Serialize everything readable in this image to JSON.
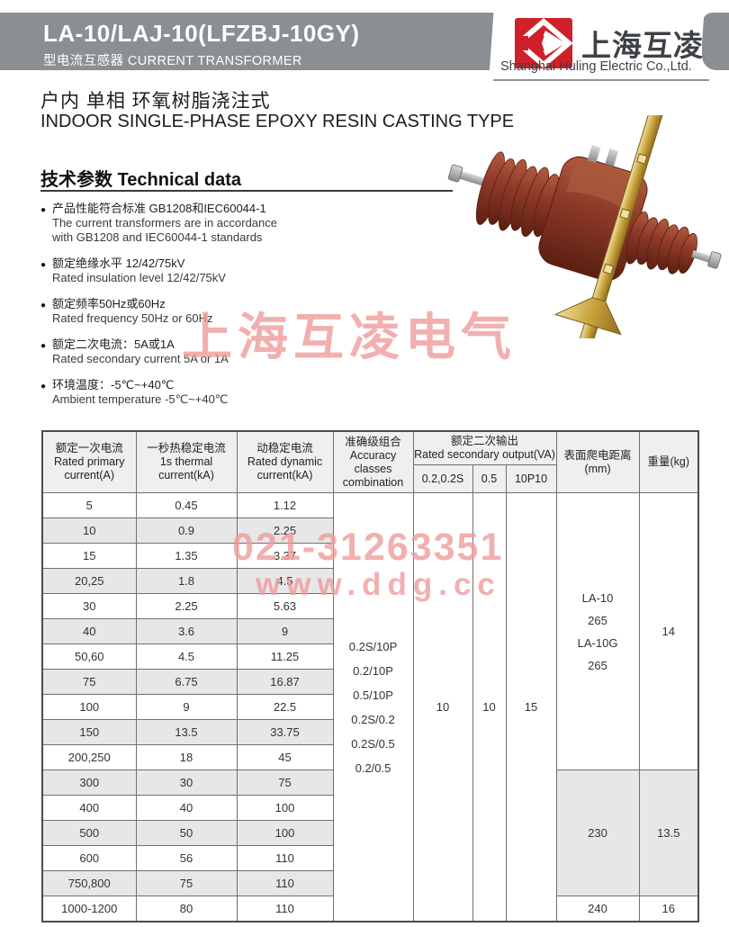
{
  "header": {
    "title": "LA-10/LAJ-10(LFZBJ-10GY)",
    "subtitle": "型电流互感器 CURRENT TRANSFORMER",
    "logo": {
      "brand_cn": "上海互凌",
      "company_en": "Shanghai Huling Electric Co.,Ltd.",
      "logo_red": "#d0202a",
      "bar_gray": "#8b8f93"
    }
  },
  "intro": {
    "line_cn": "户内  单相  环氧树脂浇注式",
    "line_en": "INDOOR SINGLE-PHASE EPOXY RESIN CASTING TYPE"
  },
  "tech": {
    "heading": "技术参数  Technical data",
    "bullets": [
      {
        "cn": "产品性能符合标准 GB1208和IEC60044-1",
        "en": [
          "The current transformers are in accordance",
          "with GB1208 and IEC60044-1 standards"
        ]
      },
      {
        "cn": "额定绝缘水平 12/42/75kV",
        "en": [
          "Rated insulation level 12/42/75kV"
        ]
      },
      {
        "cn": "额定频率50Hz或60Hz",
        "en": [
          "Rated frequency 50Hz or 60Hz"
        ]
      },
      {
        "cn": "额定二次电流：5A或1A",
        "en": [
          "Rated secondary current 5A or 1A"
        ]
      },
      {
        "cn": "环境温度：-5℃~+40℃",
        "en": [
          "Ambient temperature -5℃~+40℃"
        ]
      }
    ]
  },
  "watermarks": {
    "brand": "上海互凌电气",
    "phone": "021-31263351",
    "site": "www.ddg.cc",
    "color": "#f09c9c"
  },
  "product_photo": {
    "description": "red-brown epoxy cast current transformer with ribbed insulators and brass mounting plate",
    "body_color": "#8e3a28",
    "plate_color": "#c8a23c"
  },
  "table": {
    "columns": [
      {
        "key": "primary",
        "lines": [
          "额定一次电流",
          "Rated primary",
          "current(A)"
        ]
      },
      {
        "key": "thermal",
        "lines": [
          "一秒热稳定电流",
          "1s thermal",
          "current(kA)"
        ]
      },
      {
        "key": "dynamic",
        "lines": [
          "动稳定电流",
          "Rated dynamic",
          "current(kA)"
        ]
      },
      {
        "key": "accuracy",
        "lines": [
          "准确级组合",
          "Accuracy",
          "classes",
          "combination"
        ]
      },
      {
        "key": "output",
        "group": [
          "额定二次输出",
          "Rated secondary output(VA)"
        ],
        "subs": [
          "0.2,0.2S",
          "0.5",
          "10P10"
        ]
      },
      {
        "key": "creepage",
        "lines": [
          "表面爬电距离",
          "(mm)"
        ]
      },
      {
        "key": "weight",
        "lines": [
          "重量(kg)"
        ]
      }
    ],
    "rows": [
      {
        "primary": "5",
        "thermal": "0.45",
        "dynamic": "1.12"
      },
      {
        "primary": "10",
        "thermal": "0.9",
        "dynamic": "2.25"
      },
      {
        "primary": "15",
        "thermal": "1.35",
        "dynamic": "3.37"
      },
      {
        "primary": "20,25",
        "thermal": "1.8",
        "dynamic": "4.5"
      },
      {
        "primary": "30",
        "thermal": "2.25",
        "dynamic": "5.63"
      },
      {
        "primary": "40",
        "thermal": "3.6",
        "dynamic": "9"
      },
      {
        "primary": "50,60",
        "thermal": "4.5",
        "dynamic": "11.25"
      },
      {
        "primary": "75",
        "thermal": "6.75",
        "dynamic": "16.87"
      },
      {
        "primary": "100",
        "thermal": "9",
        "dynamic": "22.5"
      },
      {
        "primary": "150",
        "thermal": "13.5",
        "dynamic": "33.75"
      },
      {
        "primary": "200,250",
        "thermal": "18",
        "dynamic": "45"
      },
      {
        "primary": "300",
        "thermal": "30",
        "dynamic": "75"
      },
      {
        "primary": "400",
        "thermal": "40",
        "dynamic": "100"
      },
      {
        "primary": "500",
        "thermal": "50",
        "dynamic": "100"
      },
      {
        "primary": "600",
        "thermal": "56",
        "dynamic": "110"
      },
      {
        "primary": "750,800",
        "thermal": "75",
        "dynamic": "110"
      },
      {
        "primary": "1000-1200",
        "thermal": "80",
        "dynamic": "110"
      }
    ],
    "accuracy_classes": [
      "0.2S/10P",
      "0.2/10P",
      "0.5/10P",
      "0.2S/0.2",
      "0.2S/0.5",
      "0.2/0.5"
    ],
    "secondary_output": [
      "10",
      "10",
      "15"
    ],
    "creepage_weight_groups": [
      {
        "from": 0,
        "to": 10,
        "creepage_lines": [
          "LA-10",
          "265",
          "LA-10G",
          "265"
        ],
        "weight": "14",
        "shaded": false
      },
      {
        "from": 11,
        "to": 15,
        "creepage_lines": [
          "230"
        ],
        "weight": "13.5",
        "shaded": true
      },
      {
        "from": 16,
        "to": 16,
        "creepage_lines": [
          "240"
        ],
        "weight": "16",
        "shaded": false
      }
    ]
  }
}
